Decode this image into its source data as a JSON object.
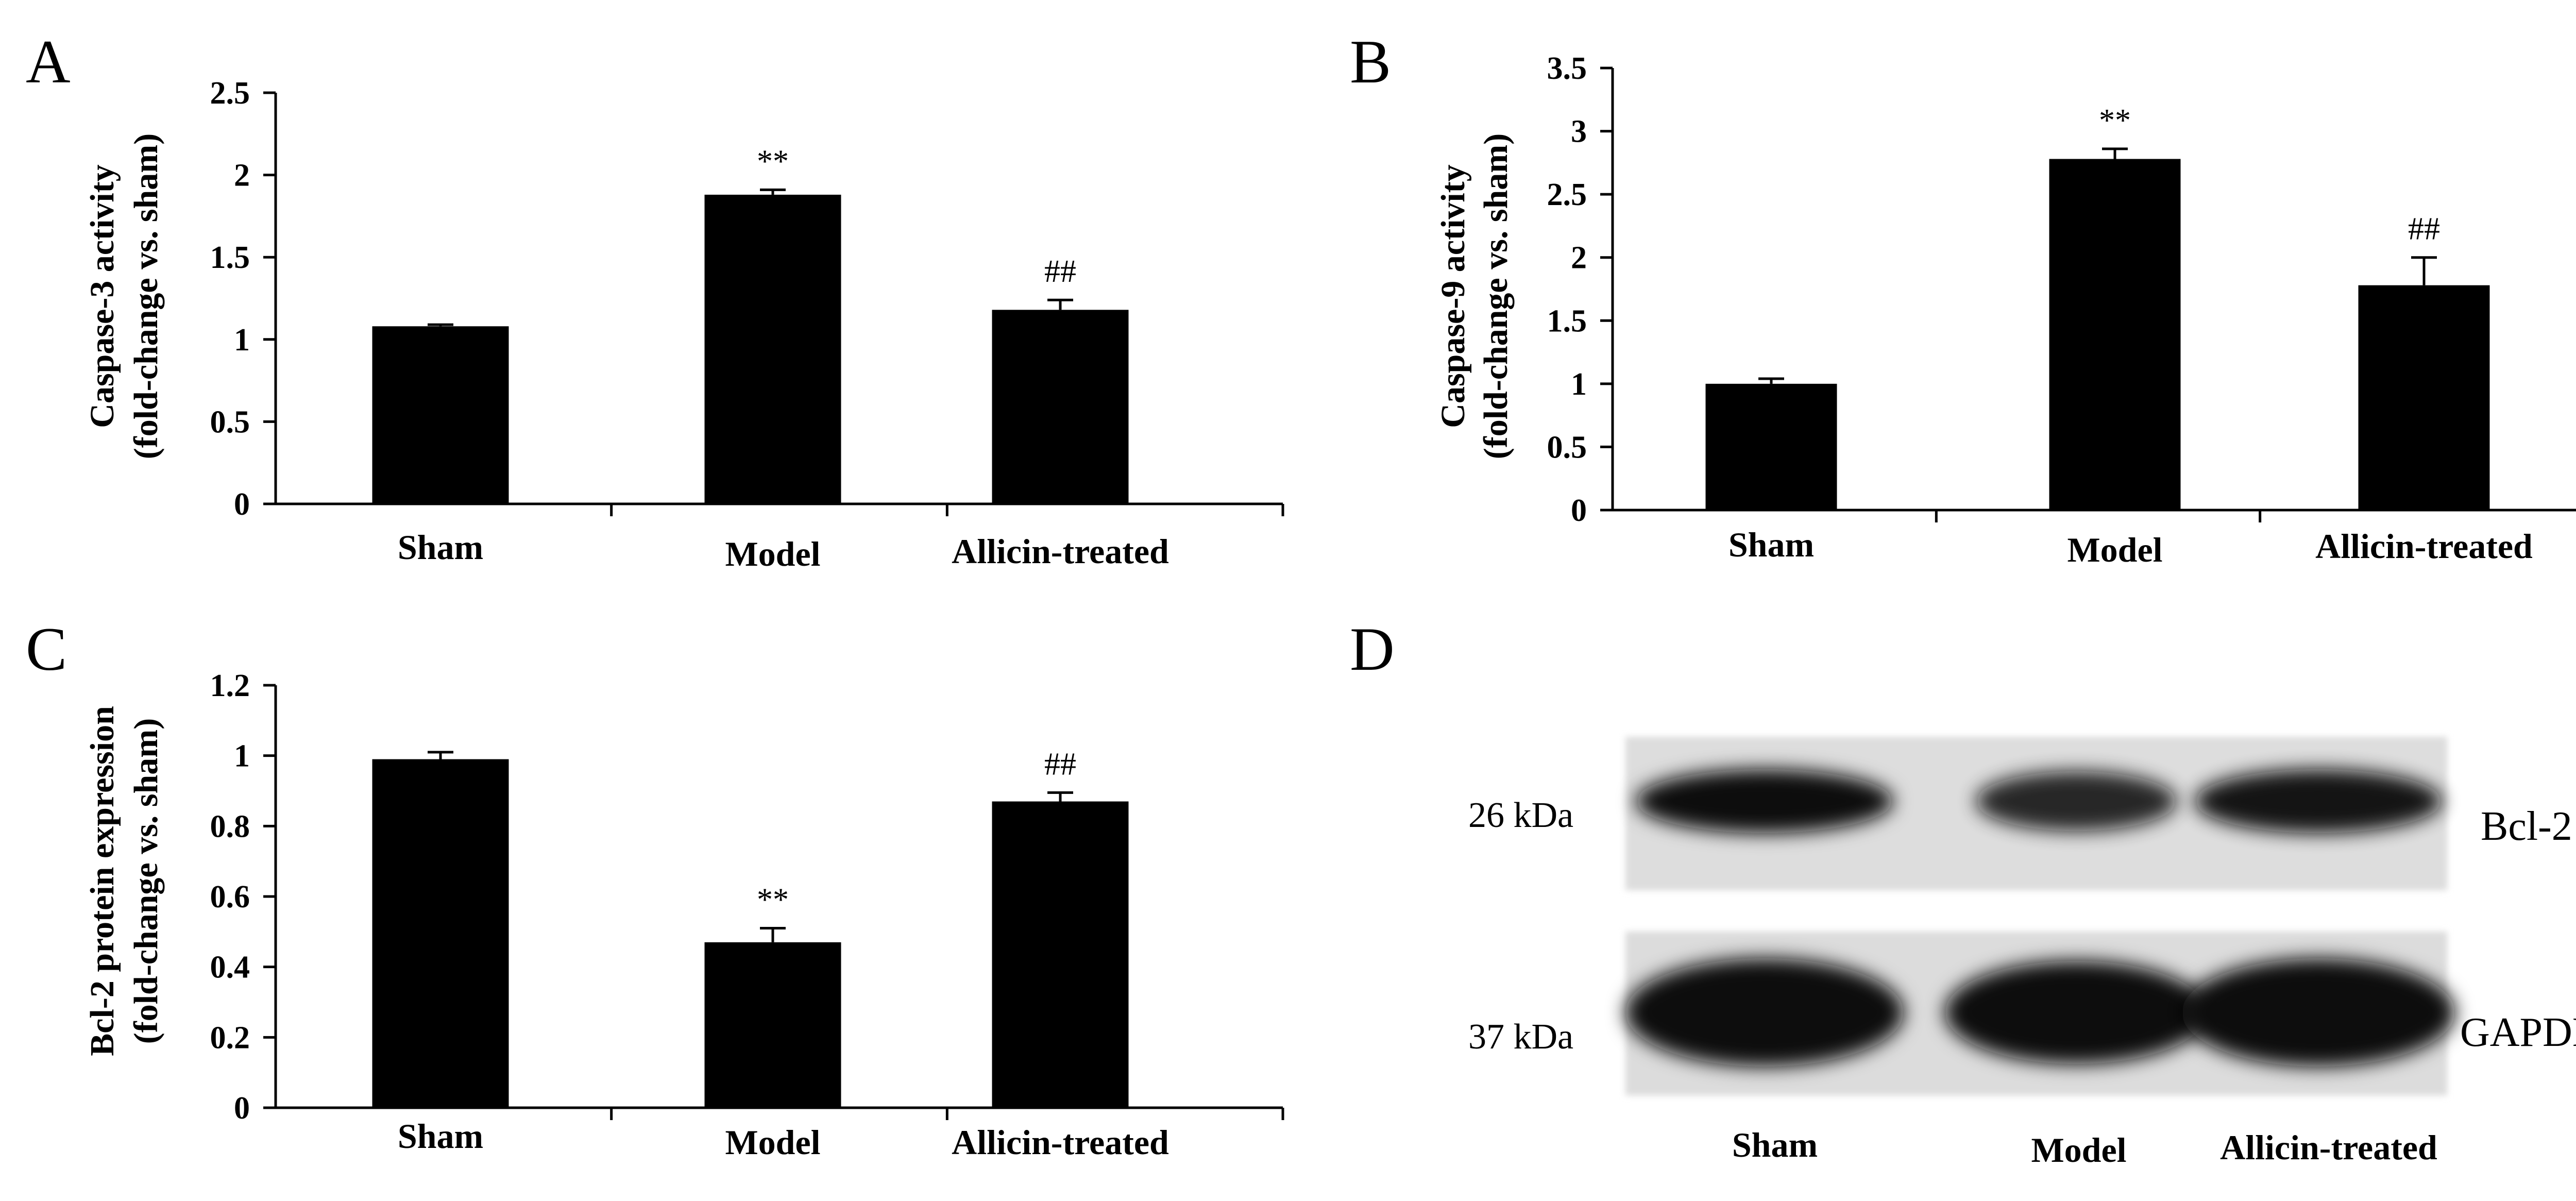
{
  "chart_data": [
    {
      "type": "bar",
      "panel": "A",
      "title": "",
      "xlabel": "",
      "ylabel": [
        "Caspase-3 activity",
        "(fold-change vs. sham)"
      ],
      "categories": [
        "Sham",
        "Model",
        "Allicin-treated"
      ],
      "values": [
        1.08,
        1.88,
        1.18
      ],
      "errors": [
        0.01,
        0.03,
        0.06
      ],
      "annotations": [
        "",
        "**",
        "##"
      ],
      "ylim": [
        0,
        2.5
      ],
      "yticks": [
        0,
        0.5,
        1,
        1.5,
        2,
        2.5
      ],
      "ytick_labels": [
        "0",
        "0.5",
        "1",
        "1.5",
        "2",
        "2.5"
      ],
      "color": "#000000",
      "grid": false
    },
    {
      "type": "bar",
      "panel": "B",
      "title": "",
      "xlabel": "",
      "ylabel": [
        "Caspase-9 activity",
        "(fold-change vs. sham)"
      ],
      "categories": [
        "Sham",
        "Model",
        "Allicin-treated"
      ],
      "values": [
        1.0,
        2.78,
        1.78
      ],
      "errors": [
        0.04,
        0.08,
        0.22
      ],
      "annotations": [
        "",
        "**",
        "##"
      ],
      "ylim": [
        0,
        3.5
      ],
      "yticks": [
        0,
        0.5,
        1,
        1.5,
        2,
        2.5,
        3,
        3.5
      ],
      "ytick_labels": [
        "0",
        "0.5",
        "1",
        "1.5",
        "2",
        "2.5",
        "3",
        "3.5"
      ],
      "color": "#000000",
      "grid": false
    },
    {
      "type": "bar",
      "panel": "C",
      "title": "",
      "xlabel": "",
      "ylabel": [
        "Bcl-2 protein expression",
        "(fold-change vs. sham)"
      ],
      "categories": [
        "Sham",
        "Model",
        "Allicin-treated"
      ],
      "values": [
        0.99,
        0.47,
        0.87
      ],
      "errors": [
        0.02,
        0.04,
        0.025
      ],
      "annotations": [
        "",
        "**",
        "##"
      ],
      "ylim": [
        0,
        1.2
      ],
      "yticks": [
        0,
        0.2,
        0.4,
        0.6,
        0.8,
        1,
        1.2
      ],
      "ytick_labels": [
        "0",
        "0.2",
        "0.4",
        "0.6",
        "0.8",
        "1",
        "1.2"
      ],
      "color": "#000000",
      "grid": false
    }
  ],
  "blot": {
    "panel": "D",
    "lanes": [
      "Sham",
      "Model",
      "Allicin-treated"
    ],
    "rows": [
      {
        "protein": "Bcl-2",
        "size": "26 kDa",
        "band_intensity": [
          0.95,
          0.75,
          0.88
        ]
      },
      {
        "protein": "GAPDH",
        "size": "37 kDa",
        "band_intensity": [
          1.0,
          1.0,
          1.0
        ]
      }
    ],
    "band_color": "#111111",
    "membrane_color": "#dddddd"
  }
}
